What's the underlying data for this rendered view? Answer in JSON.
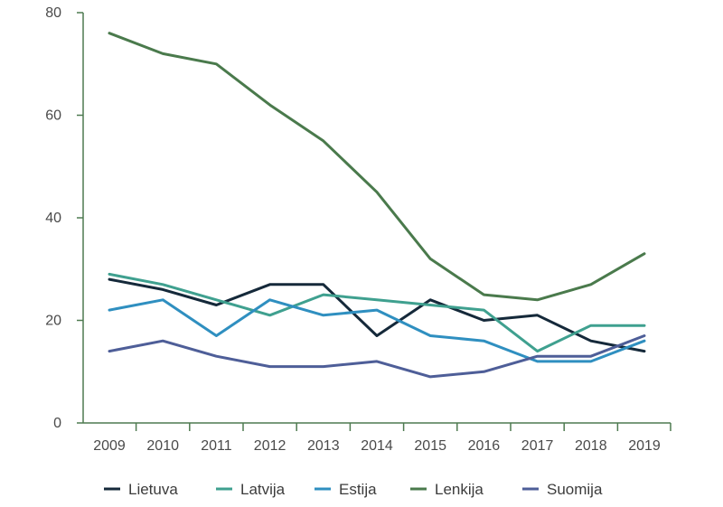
{
  "chart_data": {
    "type": "line",
    "x": [
      "2009",
      "2010",
      "2011",
      "2012",
      "2013",
      "2014",
      "2015",
      "2016",
      "2017",
      "2018",
      "2019"
    ],
    "ylim": [
      0,
      80
    ],
    "yticks": [
      0,
      20,
      40,
      60,
      80
    ],
    "grid": false,
    "legend_position": "bottom",
    "axis_color": "#4e7a50",
    "series": [
      {
        "name": "Lietuva",
        "color": "#15293a",
        "values": [
          28,
          26,
          23,
          27,
          27,
          17,
          24,
          20,
          21,
          16,
          14
        ]
      },
      {
        "name": "Latvija",
        "color": "#3fa08f",
        "values": [
          29,
          27,
          24,
          21,
          25,
          24,
          23,
          22,
          14,
          19,
          19
        ]
      },
      {
        "name": "Estija",
        "color": "#2f8fc0",
        "values": [
          22,
          24,
          17,
          24,
          21,
          22,
          17,
          16,
          12,
          12,
          16
        ]
      },
      {
        "name": "Lenkija",
        "color": "#4a7a4c",
        "values": [
          76,
          72,
          70,
          62,
          55,
          45,
          32,
          25,
          24,
          27,
          33
        ]
      },
      {
        "name": "Suomija",
        "color": "#4e5e98",
        "values": [
          14,
          16,
          13,
          11,
          11,
          12,
          9,
          10,
          13,
          13,
          17
        ]
      }
    ]
  }
}
